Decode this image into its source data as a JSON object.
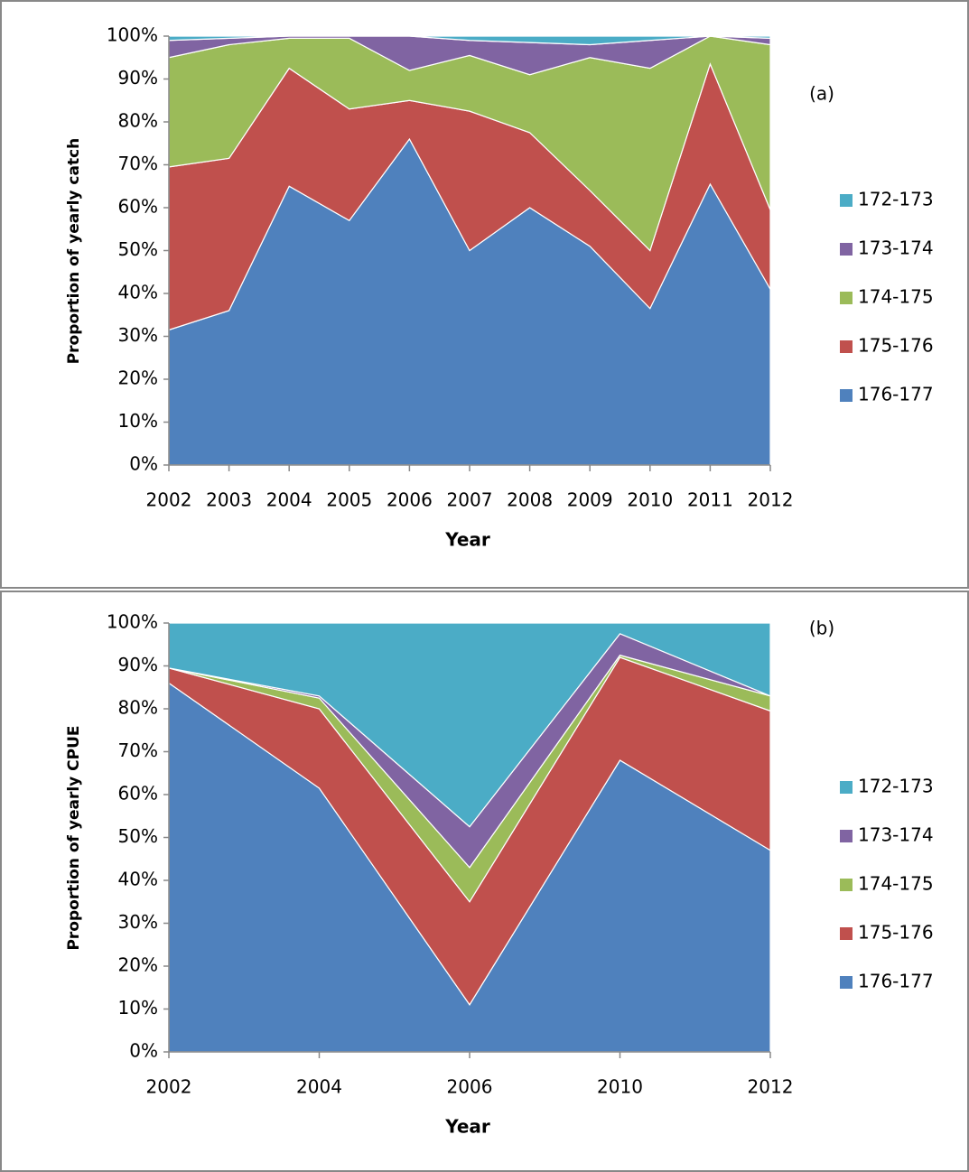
{
  "chart_data": [
    {
      "type": "area",
      "stacked": true,
      "annotation": "(a)",
      "x_label": "Year",
      "y_label": "Proportion of yearly catch",
      "categories": [
        "2002",
        "2003",
        "2004",
        "2005",
        "2006",
        "2007",
        "2008",
        "2009",
        "2010",
        "2011",
        "2012"
      ],
      "ylim": [
        0,
        100
      ],
      "yticks": [
        {
          "value": 0,
          "label": "0%"
        },
        {
          "value": 10,
          "label": "10%"
        },
        {
          "value": 20,
          "label": "20%"
        },
        {
          "value": 30,
          "label": "30%"
        },
        {
          "value": 40,
          "label": "40%"
        },
        {
          "value": 50,
          "label": "50%"
        },
        {
          "value": 60,
          "label": "60%"
        },
        {
          "value": 70,
          "label": "70%"
        },
        {
          "value": 80,
          "label": "80%"
        },
        {
          "value": 90,
          "label": "90%"
        },
        {
          "value": 100,
          "label": "100%"
        }
      ],
      "series": [
        {
          "name": "176-177",
          "color": "#4f81bd",
          "values": [
            31.5,
            36,
            65,
            57,
            76,
            50,
            60,
            51,
            36.5,
            65.5,
            41
          ]
        },
        {
          "name": "175-176",
          "color": "#c0504d",
          "values": [
            38,
            35.5,
            27.5,
            26,
            9,
            32.5,
            17.5,
            13,
            13.5,
            28,
            18.5
          ]
        },
        {
          "name": "174-175",
          "color": "#9bbb59",
          "values": [
            25.5,
            26.5,
            7,
            16.5,
            7,
            13,
            13.5,
            31,
            42.5,
            6.5,
            38.5
          ]
        },
        {
          "name": "173-174",
          "color": "#8064a2",
          "values": [
            4,
            1.5,
            0.5,
            0.5,
            8,
            3.5,
            7.5,
            3,
            6.5,
            0,
            1.5
          ]
        },
        {
          "name": "172-173",
          "color": "#4bacc6",
          "values": [
            1,
            0.5,
            0,
            0,
            0,
            1,
            1.5,
            2,
            1,
            0,
            0.5
          ]
        }
      ]
    },
    {
      "type": "area",
      "stacked": true,
      "annotation": "(b)",
      "x_label": "Year",
      "y_label": "Proportion of yearly CPUE",
      "categories": [
        "2002",
        "2004",
        "2006",
        "2010",
        "2012"
      ],
      "ylim": [
        0,
        100
      ],
      "yticks": [
        {
          "value": 0,
          "label": "0%"
        },
        {
          "value": 10,
          "label": "10%"
        },
        {
          "value": 20,
          "label": "20%"
        },
        {
          "value": 30,
          "label": "30%"
        },
        {
          "value": 40,
          "label": "40%"
        },
        {
          "value": 50,
          "label": "50%"
        },
        {
          "value": 60,
          "label": "60%"
        },
        {
          "value": 70,
          "label": "70%"
        },
        {
          "value": 80,
          "label": "80%"
        },
        {
          "value": 90,
          "label": "90%"
        },
        {
          "value": 100,
          "label": "100%"
        }
      ],
      "series": [
        {
          "name": "176-177",
          "color": "#4f81bd",
          "values": [
            86,
            61.5,
            11,
            68,
            47
          ]
        },
        {
          "name": "175-176",
          "color": "#c0504d",
          "values": [
            3.5,
            18.5,
            24,
            24,
            32.5
          ]
        },
        {
          "name": "174-175",
          "color": "#9bbb59",
          "values": [
            0,
            2.5,
            8,
            0.5,
            3.5
          ]
        },
        {
          "name": "173-174",
          "color": "#8064a2",
          "values": [
            0,
            0.5,
            9.5,
            5,
            0
          ]
        },
        {
          "name": "172-173",
          "color": "#4bacc6",
          "values": [
            10.5,
            17,
            47.5,
            2.5,
            17
          ]
        }
      ]
    }
  ]
}
